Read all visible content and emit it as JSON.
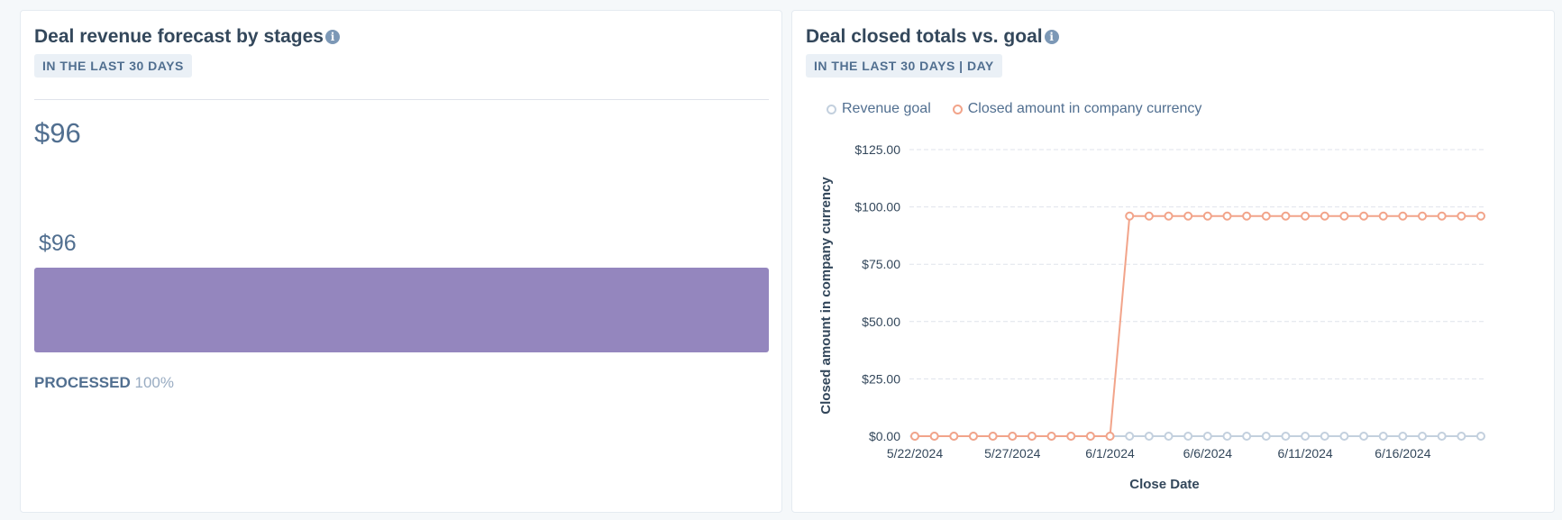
{
  "left_card": {
    "title": "Deal revenue forecast by stages",
    "date_range": "IN THE LAST 30 DAYS",
    "total": "$96",
    "bar_value": "$96",
    "stage_name": "PROCESSED",
    "stage_percent": "100%",
    "bar_color": "#9486be"
  },
  "right_card": {
    "title": "Deal closed totals vs. goal",
    "date_range": "IN THE LAST 30 DAYS | DAY",
    "legend": [
      {
        "label": "Revenue goal",
        "color": "#c3d0de"
      },
      {
        "label": "Closed amount in company currency",
        "color": "#f2a48a"
      }
    ]
  },
  "chart_data": {
    "type": "line",
    "xlabel": "Close Date",
    "ylabel": "Closed amount in company currency",
    "ylim": [
      0,
      125
    ],
    "y_ticks": [
      {
        "value": 0,
        "label": "$0.00"
      },
      {
        "value": 25,
        "label": "$25.00"
      },
      {
        "value": 50,
        "label": "$50.00"
      },
      {
        "value": 75,
        "label": "$75.00"
      },
      {
        "value": 100,
        "label": "$100.00"
      },
      {
        "value": 125,
        "label": "$125.00"
      }
    ],
    "x": [
      "5/22/2024",
      "5/23/2024",
      "5/24/2024",
      "5/25/2024",
      "5/26/2024",
      "5/27/2024",
      "5/28/2024",
      "5/29/2024",
      "5/30/2024",
      "5/31/2024",
      "6/1/2024",
      "6/2/2024",
      "6/3/2024",
      "6/4/2024",
      "6/5/2024",
      "6/6/2024",
      "6/7/2024",
      "6/8/2024",
      "6/9/2024",
      "6/10/2024",
      "6/11/2024",
      "6/12/2024",
      "6/13/2024",
      "6/14/2024",
      "6/15/2024",
      "6/16/2024",
      "6/17/2024",
      "6/18/2024",
      "6/19/2024",
      "6/20/2024"
    ],
    "x_tick_labels": [
      "5/22/2024",
      "5/27/2024",
      "6/1/2024",
      "6/6/2024",
      "6/11/2024",
      "6/16/2024"
    ],
    "grid": true,
    "legend_position": "top-left",
    "series": [
      {
        "name": "Revenue goal",
        "color": "#c3d0de",
        "values": [
          0,
          0,
          0,
          0,
          0,
          0,
          0,
          0,
          0,
          0,
          0,
          0,
          0,
          0,
          0,
          0,
          0,
          0,
          0,
          0,
          0,
          0,
          0,
          0,
          0,
          0,
          0,
          0,
          0,
          0
        ]
      },
      {
        "name": "Closed amount in company currency",
        "color": "#f2a48a",
        "values": [
          0,
          0,
          0,
          0,
          0,
          0,
          0,
          0,
          0,
          0,
          0,
          96,
          96,
          96,
          96,
          96,
          96,
          96,
          96,
          96,
          96,
          96,
          96,
          96,
          96,
          96,
          96,
          96,
          96,
          96
        ]
      }
    ]
  }
}
